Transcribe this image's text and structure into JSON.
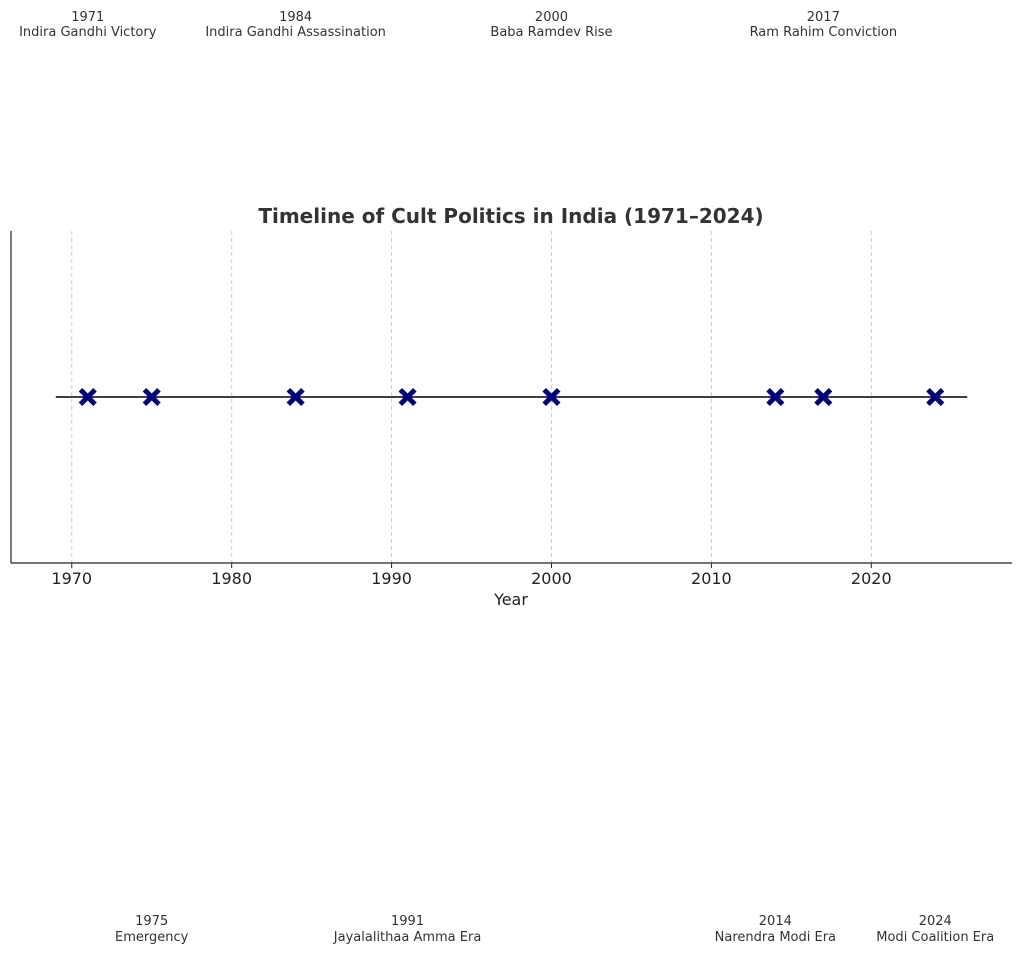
{
  "chart_data": {
    "type": "scatter",
    "title": "Timeline of Cult Politics in India (1971–2024)",
    "xlabel": "Year",
    "ylabel": "",
    "xlim": [
      1966.2,
      2028.8
    ],
    "ylim": [
      -1,
      1
    ],
    "xticks": [
      1970,
      1980,
      1990,
      2000,
      2010,
      2020
    ],
    "grid": "vertical dashed",
    "baseline": {
      "from": 1969,
      "to": 2026,
      "color": "#000000"
    },
    "marker": {
      "shape": "X",
      "color": "#000080"
    },
    "events": [
      {
        "year": 1971,
        "label": "Indira Gandhi Victory",
        "position": "top"
      },
      {
        "year": 1975,
        "label": "Emergency",
        "position": "bottom"
      },
      {
        "year": 1984,
        "label": "Indira Gandhi Assassination",
        "position": "top"
      },
      {
        "year": 1991,
        "label": "Jayalalithaa Amma Era",
        "position": "bottom"
      },
      {
        "year": 2000,
        "label": "Baba Ramdev Rise",
        "position": "top"
      },
      {
        "year": 2014,
        "label": "Narendra Modi Era",
        "position": "bottom"
      },
      {
        "year": 2017,
        "label": "Ram Rahim Conviction",
        "position": "top"
      },
      {
        "year": 2024,
        "label": "Modi Coalition Era",
        "position": "bottom"
      }
    ]
  }
}
